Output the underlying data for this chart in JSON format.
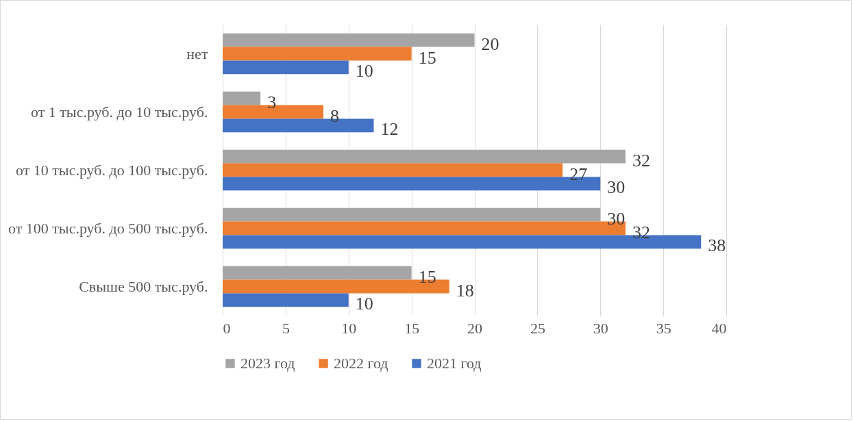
{
  "chart_data": {
    "type": "bar",
    "orientation": "horizontal",
    "categories": [
      "нет",
      "от 1 тыс.руб. до 10 тыс.руб.",
      "от 10 тыс.руб. до 100 тыс.руб.",
      "от 100 тыс.руб. до 500 тыс.руб.",
      "Свыше 500 тыс.руб."
    ],
    "series": [
      {
        "name": "2023 год",
        "color": "#a5a5a5",
        "values": [
          20,
          3,
          32,
          30,
          15
        ]
      },
      {
        "name": "2022 год",
        "color": "#ed7d31",
        "values": [
          15,
          8,
          27,
          32,
          18
        ]
      },
      {
        "name": "2021 год",
        "color": "#4472c4",
        "values": [
          10,
          12,
          30,
          38,
          10
        ]
      }
    ],
    "xlim": [
      0,
      40
    ],
    "xticks": [
      0,
      5,
      10,
      15,
      20,
      25,
      30,
      35,
      40
    ],
    "grid": "x",
    "legend": "bottom",
    "data_labels": true
  }
}
